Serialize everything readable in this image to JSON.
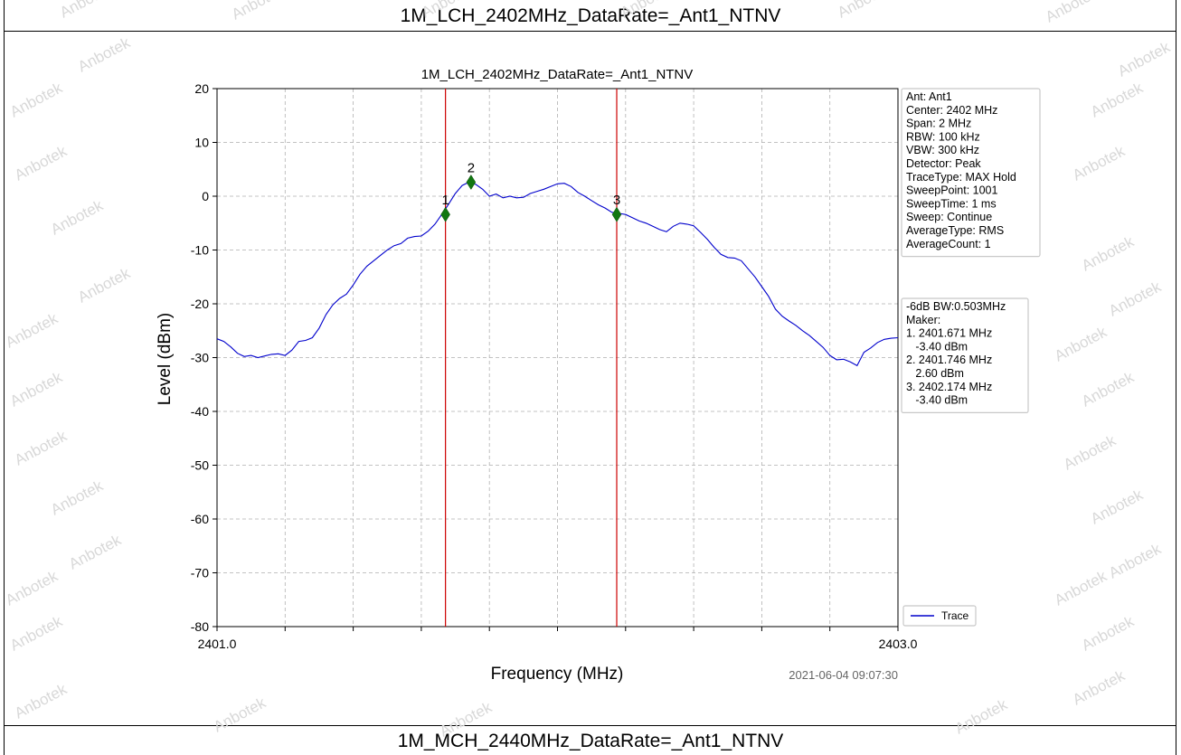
{
  "page": {
    "top_title": "1M_LCH_2402MHz_DataRate=_Ant1_NTNV",
    "bottom_title": "1M_MCH_2440MHz_DataRate=_Ant1_NTNV",
    "watermark": "Anbotek"
  },
  "chart_data": {
    "type": "line",
    "title": "1M_LCH_2402MHz_DataRate=_Ant1_NTNV",
    "xlabel": "Frequency (MHz)",
    "ylabel": "Level (dBm)",
    "xlim": [
      2401.0,
      2403.0
    ],
    "ylim": [
      -80,
      20
    ],
    "x_tick_labels": [
      "2401.0",
      "2403.0"
    ],
    "x_minor_ticks": [
      2401.0,
      2401.2,
      2401.4,
      2401.6,
      2401.8,
      2402.0,
      2402.2,
      2402.4,
      2402.6,
      2402.8,
      2403.0
    ],
    "y_ticks": [
      20,
      10,
      0,
      -10,
      -20,
      -30,
      -40,
      -50,
      -60,
      -70,
      -80
    ],
    "grid": true,
    "timestamp": "2021-06-04 09:07:30",
    "series": [
      {
        "name": "Trace",
        "color": "#0000cc",
        "x": [
          2401.0,
          2401.02,
          2401.04,
          2401.06,
          2401.08,
          2401.1,
          2401.12,
          2401.14,
          2401.16,
          2401.18,
          2401.2,
          2401.22,
          2401.24,
          2401.26,
          2401.28,
          2401.3,
          2401.32,
          2401.34,
          2401.36,
          2401.38,
          2401.4,
          2401.42,
          2401.44,
          2401.46,
          2401.48,
          2401.5,
          2401.52,
          2401.54,
          2401.56,
          2401.58,
          2401.6,
          2401.62,
          2401.64,
          2401.66,
          2401.68,
          2401.7,
          2401.72,
          2401.74,
          2401.76,
          2401.78,
          2401.8,
          2401.82,
          2401.84,
          2401.86,
          2401.88,
          2401.9,
          2401.92,
          2401.94,
          2401.96,
          2401.98,
          2402.0,
          2402.02,
          2402.04,
          2402.06,
          2402.08,
          2402.1,
          2402.12,
          2402.14,
          2402.16,
          2402.18,
          2402.2,
          2402.22,
          2402.24,
          2402.26,
          2402.28,
          2402.3,
          2402.32,
          2402.34,
          2402.36,
          2402.38,
          2402.4,
          2402.42,
          2402.44,
          2402.46,
          2402.48,
          2402.5,
          2402.52,
          2402.54,
          2402.56,
          2402.58,
          2402.6,
          2402.62,
          2402.64,
          2402.66,
          2402.68,
          2402.7,
          2402.72,
          2402.74,
          2402.76,
          2402.78,
          2402.8,
          2402.82,
          2402.84,
          2402.86,
          2402.88,
          2402.9,
          2402.92,
          2402.94,
          2402.96,
          2402.98,
          2403.0
        ],
        "y": [
          -26.5,
          -27.0,
          -28.0,
          -29.2,
          -29.8,
          -29.6,
          -30.0,
          -29.7,
          -29.4,
          -29.3,
          -29.6,
          -28.6,
          -27.0,
          -26.8,
          -26.3,
          -24.5,
          -22.0,
          -20.2,
          -19.0,
          -18.2,
          -16.5,
          -14.5,
          -13.0,
          -12.0,
          -11.0,
          -10.0,
          -9.2,
          -8.8,
          -7.8,
          -7.5,
          -7.4,
          -6.5,
          -5.2,
          -3.4,
          -1.5,
          0.5,
          2.0,
          2.6,
          2.2,
          1.3,
          0.0,
          0.4,
          -0.3,
          0.0,
          -0.3,
          -0.2,
          0.5,
          0.9,
          1.3,
          1.8,
          2.3,
          2.4,
          1.8,
          0.7,
          0.0,
          -0.8,
          -1.6,
          -2.2,
          -3.0,
          -3.2,
          -3.4,
          -4.0,
          -4.6,
          -5.0,
          -5.6,
          -6.2,
          -6.6,
          -5.6,
          -5.0,
          -5.2,
          -5.5,
          -6.7,
          -8.0,
          -9.5,
          -10.8,
          -11.4,
          -11.5,
          -12.0,
          -13.5,
          -15.0,
          -16.8,
          -18.6,
          -21.0,
          -22.3,
          -23.2,
          -24.0,
          -25.0,
          -25.9,
          -27.0,
          -28.1,
          -29.6,
          -30.4,
          -30.3,
          -30.8,
          -31.5,
          -29.0,
          -28.2,
          -27.2,
          -26.6,
          -26.4,
          -26.3
        ]
      }
    ],
    "vlines": [
      {
        "x": 2401.671,
        "color": "#cc0000"
      },
      {
        "x": 2402.174,
        "color": "#cc0000"
      }
    ],
    "markers": [
      {
        "label": "1",
        "x": 2401.671,
        "y": -3.4,
        "color": "#117711"
      },
      {
        "label": "2",
        "x": 2401.746,
        "y": 2.6,
        "color": "#117711"
      },
      {
        "label": "3",
        "x": 2402.174,
        "y": -3.4,
        "color": "#117711"
      }
    ],
    "info_box": [
      "Ant: Ant1",
      "Center: 2402 MHz",
      "Span: 2 MHz",
      "RBW: 100 kHz",
      "VBW: 300 kHz",
      "Detector: Peak",
      "TraceType: MAX Hold",
      "SweepPoint: 1001",
      "SweepTime: 1 ms",
      "Sweep: Continue",
      "AverageType: RMS",
      "AverageCount: 1"
    ],
    "marker_box": [
      "-6dB BW:0.503MHz",
      "Maker:",
      "1. 2401.671 MHz",
      "   -3.40 dBm",
      "2. 2401.746 MHz",
      "   2.60 dBm",
      "3. 2402.174 MHz",
      "   -3.40 dBm"
    ],
    "legend": {
      "label": "Trace",
      "placement": "bottom-right"
    }
  }
}
